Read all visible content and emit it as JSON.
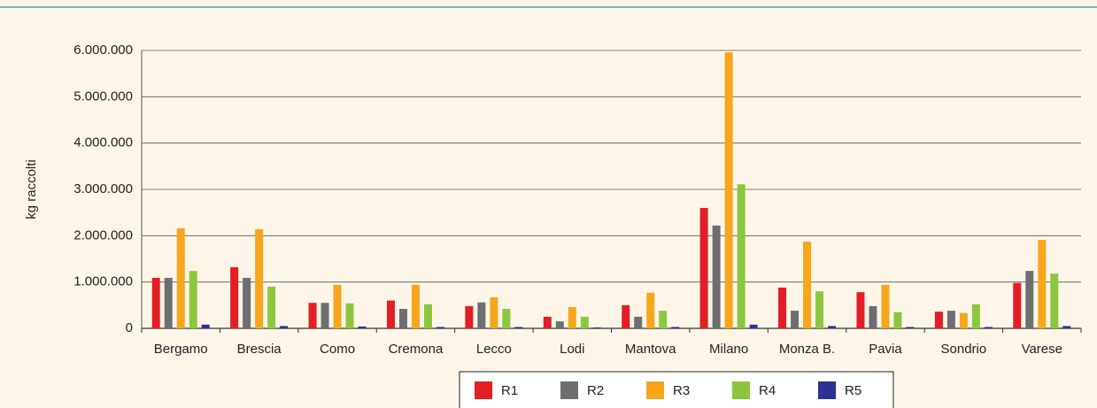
{
  "chart_data": {
    "type": "bar",
    "y_label": "kg raccolti",
    "categories": [
      "Bergamo",
      "Brescia",
      "Como",
      "Cremona",
      "Lecco",
      "Lodi",
      "Mantova",
      "Milano",
      "Monza B.",
      "Pavia",
      "Sondrio",
      "Varese"
    ],
    "series": [
      {
        "name": "R1",
        "color": "#e31e24",
        "values": [
          1090000,
          1320000,
          550000,
          600000,
          480000,
          250000,
          500000,
          2600000,
          880000,
          780000,
          360000,
          980000
        ]
      },
      {
        "name": "R2",
        "color": "#6d6e70",
        "values": [
          1090000,
          1090000,
          550000,
          420000,
          560000,
          150000,
          250000,
          2220000,
          380000,
          480000,
          380000,
          1240000
        ]
      },
      {
        "name": "R3",
        "color": "#f7a51c",
        "values": [
          2160000,
          2140000,
          940000,
          940000,
          670000,
          460000,
          770000,
          5960000,
          1870000,
          940000,
          330000,
          1910000
        ]
      },
      {
        "name": "R4",
        "color": "#8cc63f",
        "values": [
          1240000,
          900000,
          540000,
          520000,
          420000,
          250000,
          380000,
          3110000,
          800000,
          350000,
          520000,
          1180000
        ]
      },
      {
        "name": "R5",
        "color": "#2e3192",
        "values": [
          80000,
          50000,
          40000,
          30000,
          30000,
          20000,
          30000,
          80000,
          50000,
          30000,
          30000,
          50000
        ]
      }
    ],
    "ylim": [
      0,
      6000000
    ],
    "yticks": [
      0,
      {
        "value": 1000000,
        "label": "1.000.000"
      },
      {
        "value": 2000000,
        "label": "2.000.000"
      },
      {
        "value": 3000000,
        "label": "3.000.000"
      },
      {
        "value": 4000000,
        "label": "4.000.000"
      },
      {
        "value": 5000000,
        "label": "5.000.000"
      },
      {
        "value": 6000000,
        "label": "6.000.000"
      }
    ],
    "grid": true
  }
}
